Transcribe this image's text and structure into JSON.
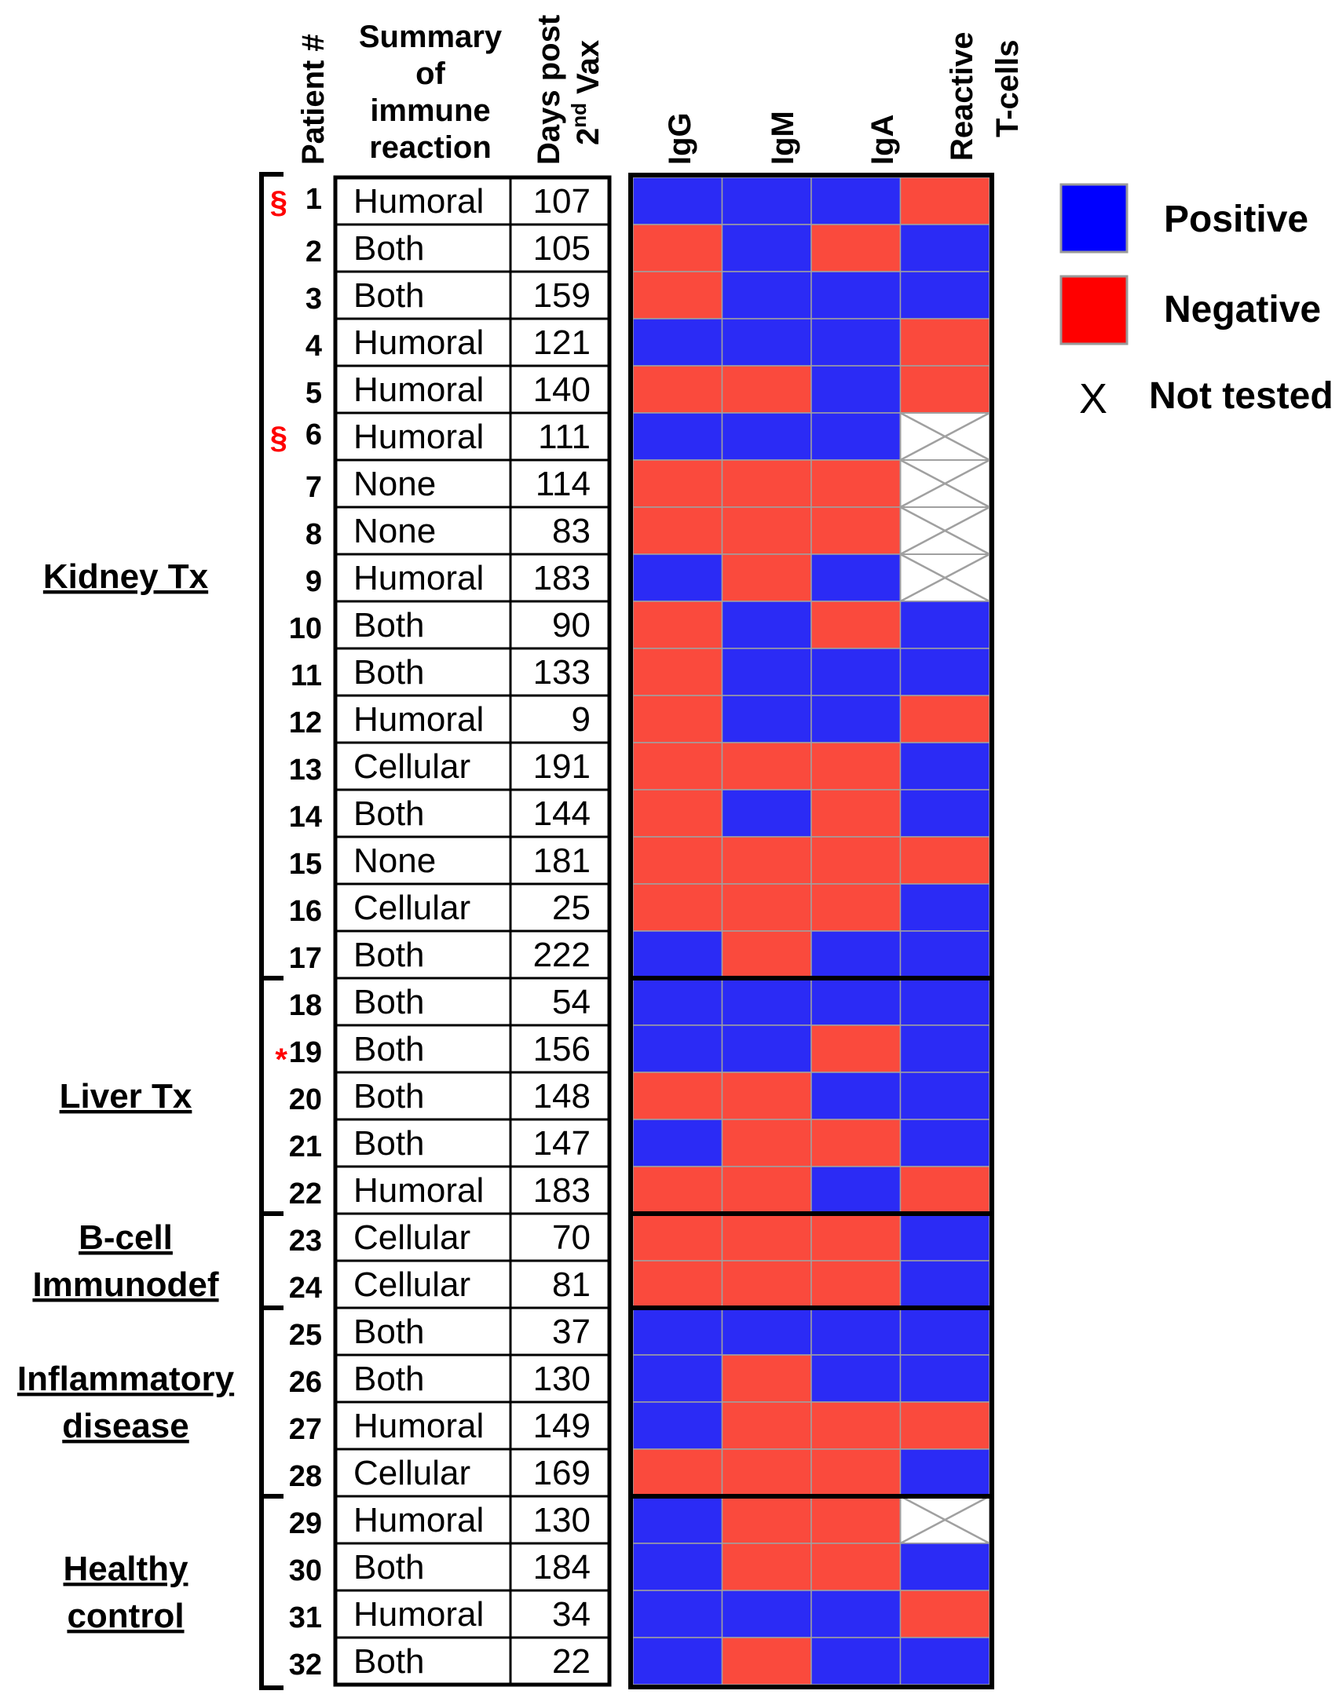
{
  "headers": {
    "patient": "Patient #",
    "summary_lines": [
      "Summary",
      "of",
      "immune",
      "reaction"
    ],
    "days_line1": "Days post",
    "days_line2_sup": "nd",
    "days_line2_pre": "2",
    "days_line2_post": " Vax",
    "heat_columns": [
      "IgG",
      "IgM",
      "IgA"
    ],
    "tcell_lines": [
      "Reactive",
      "T-cells"
    ]
  },
  "legend": {
    "positive_label": "Positive",
    "negative_label": "Negative",
    "not_tested_symbol": "X",
    "not_tested_label": "Not tested"
  },
  "colors": {
    "positive": "#2b2bf5",
    "negative": "#fa4a3d",
    "legend_positive": "#0000ff",
    "legend_negative": "#ff0000",
    "mark": "#ff0000"
  },
  "groups": [
    {
      "name_lines": [
        "Kidney Tx"
      ],
      "first_row": 1,
      "last_row": 17
    },
    {
      "name_lines": [
        "Liver Tx"
      ],
      "first_row": 18,
      "last_row": 22
    },
    {
      "name_lines": [
        "B-cell",
        "Immunodef"
      ],
      "first_row": 23,
      "last_row": 24
    },
    {
      "name_lines": [
        "Inflammatory",
        "disease"
      ],
      "first_row": 25,
      "last_row": 28
    },
    {
      "name_lines": [
        "Healthy",
        "control"
      ],
      "first_row": 29,
      "last_row": 32
    }
  ],
  "chart_data": {
    "type": "heatmap",
    "title": "",
    "columns": [
      "IgG",
      "IgM",
      "IgA",
      "Reactive T-cells"
    ],
    "value_legend": {
      "P": "Positive",
      "N": "Negative",
      "X": "Not tested"
    },
    "rows": [
      {
        "patient": "1",
        "mark": "§",
        "summary": "Humoral",
        "days": "107",
        "cells": [
          "P",
          "P",
          "P",
          "N"
        ]
      },
      {
        "patient": "2",
        "mark": "",
        "summary": "Both",
        "days": "105",
        "cells": [
          "N",
          "P",
          "N",
          "P"
        ]
      },
      {
        "patient": "3",
        "mark": "",
        "summary": "Both",
        "days": "159",
        "cells": [
          "N",
          "P",
          "P",
          "P"
        ]
      },
      {
        "patient": "4",
        "mark": "",
        "summary": "Humoral",
        "days": "121",
        "cells": [
          "P",
          "P",
          "P",
          "N"
        ]
      },
      {
        "patient": "5",
        "mark": "",
        "summary": "Humoral",
        "days": "140",
        "cells": [
          "N",
          "N",
          "P",
          "N"
        ]
      },
      {
        "patient": "6",
        "mark": "§",
        "summary": "Humoral",
        "days": "111",
        "cells": [
          "P",
          "P",
          "P",
          "X"
        ]
      },
      {
        "patient": "7",
        "mark": "",
        "summary": "None",
        "days": "114",
        "cells": [
          "N",
          "N",
          "N",
          "X"
        ]
      },
      {
        "patient": "8",
        "mark": "",
        "summary": "None",
        "days": "83",
        "cells": [
          "N",
          "N",
          "N",
          "X"
        ]
      },
      {
        "patient": "9",
        "mark": "",
        "summary": "Humoral",
        "days": "183",
        "cells": [
          "P",
          "N",
          "P",
          "X"
        ]
      },
      {
        "patient": "10",
        "mark": "",
        "summary": "Both",
        "days": "90",
        "cells": [
          "N",
          "P",
          "N",
          "P"
        ]
      },
      {
        "patient": "11",
        "mark": "",
        "summary": "Both",
        "days": "133",
        "cells": [
          "N",
          "P",
          "P",
          "P"
        ]
      },
      {
        "patient": "12",
        "mark": "",
        "summary": "Humoral",
        "days": "9",
        "cells": [
          "N",
          "P",
          "P",
          "N"
        ]
      },
      {
        "patient": "13",
        "mark": "",
        "summary": "Cellular",
        "days": "191",
        "cells": [
          "N",
          "N",
          "N",
          "P"
        ]
      },
      {
        "patient": "14",
        "mark": "",
        "summary": "Both",
        "days": "144",
        "cells": [
          "N",
          "P",
          "N",
          "P"
        ]
      },
      {
        "patient": "15",
        "mark": "",
        "summary": "None",
        "days": "181",
        "cells": [
          "N",
          "N",
          "N",
          "N"
        ]
      },
      {
        "patient": "16",
        "mark": "",
        "summary": "Cellular",
        "days": "25",
        "cells": [
          "N",
          "N",
          "N",
          "P"
        ]
      },
      {
        "patient": "17",
        "mark": "",
        "summary": "Both",
        "days": "222",
        "cells": [
          "P",
          "N",
          "P",
          "P"
        ]
      },
      {
        "patient": "18",
        "mark": "",
        "summary": "Both",
        "days": "54",
        "cells": [
          "P",
          "P",
          "P",
          "P"
        ]
      },
      {
        "patient": "19",
        "mark": "*",
        "summary": "Both",
        "days": "156",
        "cells": [
          "P",
          "P",
          "N",
          "P"
        ]
      },
      {
        "patient": "20",
        "mark": "",
        "summary": "Both",
        "days": "148",
        "cells": [
          "N",
          "N",
          "P",
          "P"
        ]
      },
      {
        "patient": "21",
        "mark": "",
        "summary": "Both",
        "days": "147",
        "cells": [
          "P",
          "N",
          "N",
          "P"
        ]
      },
      {
        "patient": "22",
        "mark": "",
        "summary": "Humoral",
        "days": "183",
        "cells": [
          "N",
          "N",
          "P",
          "N"
        ]
      },
      {
        "patient": "23",
        "mark": "",
        "summary": "Cellular",
        "days": "70",
        "cells": [
          "N",
          "N",
          "N",
          "P"
        ]
      },
      {
        "patient": "24",
        "mark": "",
        "summary": "Cellular",
        "days": "81",
        "cells": [
          "N",
          "N",
          "N",
          "P"
        ]
      },
      {
        "patient": "25",
        "mark": "",
        "summary": "Both",
        "days": "37",
        "cells": [
          "P",
          "P",
          "P",
          "P"
        ]
      },
      {
        "patient": "26",
        "mark": "",
        "summary": "Both",
        "days": "130",
        "cells": [
          "P",
          "N",
          "P",
          "P"
        ]
      },
      {
        "patient": "27",
        "mark": "",
        "summary": "Humoral",
        "days": "149",
        "cells": [
          "P",
          "N",
          "N",
          "N"
        ]
      },
      {
        "patient": "28",
        "mark": "",
        "summary": "Cellular",
        "days": "169",
        "cells": [
          "N",
          "N",
          "N",
          "P"
        ]
      },
      {
        "patient": "29",
        "mark": "",
        "summary": "Humoral",
        "days": "130",
        "cells": [
          "P",
          "N",
          "N",
          "X"
        ]
      },
      {
        "patient": "30",
        "mark": "",
        "summary": "Both",
        "days": "184",
        "cells": [
          "P",
          "N",
          "N",
          "P"
        ]
      },
      {
        "patient": "31",
        "mark": "",
        "summary": "Humoral",
        "days": "34",
        "cells": [
          "P",
          "P",
          "P",
          "N"
        ]
      },
      {
        "patient": "32",
        "mark": "",
        "summary": "Both",
        "days": "22",
        "cells": [
          "P",
          "N",
          "P",
          "P"
        ]
      }
    ]
  }
}
